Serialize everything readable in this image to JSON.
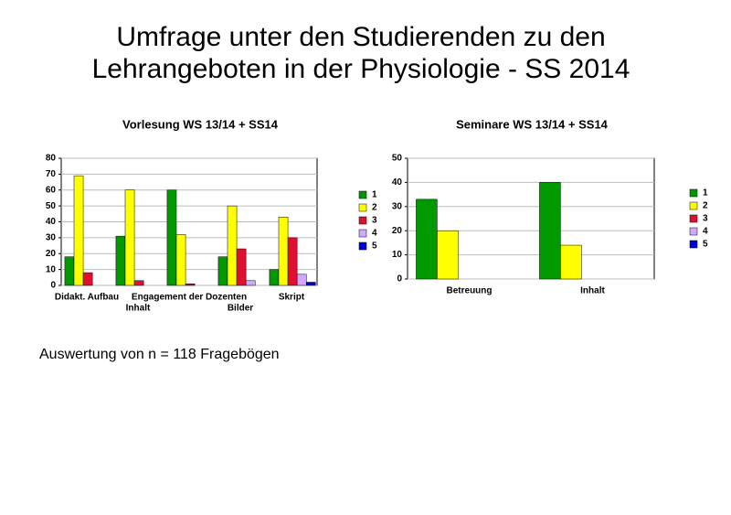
{
  "title": [
    "Umfrage unter den Studierenden zu den",
    "Lehrangeboten in der Physiologie - SS 2014"
  ],
  "footnote": "Auswertung von n = 118 Fragebögen",
  "chart_data": [
    {
      "type": "bar",
      "title": "Vorlesung WS 13/14 + SS14",
      "categories": [
        "Didakt. Aufbau",
        "Inhalt",
        "Engagement der Dozenten",
        "Bilder",
        "Skript"
      ],
      "series": [
        {
          "name": "1",
          "color": "#009900",
          "values": [
            18,
            31,
            60,
            18,
            10
          ]
        },
        {
          "name": "2",
          "color": "#ffff00",
          "values": [
            69,
            60,
            32,
            50,
            43
          ]
        },
        {
          "name": "3",
          "color": "#dd1133",
          "values": [
            8,
            3,
            1,
            23,
            30
          ]
        },
        {
          "name": "4",
          "color": "#ccaaff",
          "values": [
            0,
            0,
            0,
            3,
            7
          ]
        },
        {
          "name": "5",
          "color": "#0000dd",
          "values": [
            0,
            0,
            0,
            0,
            2
          ]
        }
      ],
      "ylim": [
        0,
        80
      ],
      "yticks": [
        0,
        10,
        20,
        30,
        40,
        50,
        60,
        70,
        80
      ],
      "grid": true
    },
    {
      "type": "bar",
      "title": "Seminare WS 13/14 + SS14",
      "categories": [
        "Betreuung",
        "Inhalt"
      ],
      "series": [
        {
          "name": "1",
          "color": "#009900",
          "values": [
            33,
            40
          ]
        },
        {
          "name": "2",
          "color": "#ffff00",
          "values": [
            20,
            14
          ]
        },
        {
          "name": "3",
          "color": "#dd1133",
          "values": [
            0,
            0
          ]
        },
        {
          "name": "4",
          "color": "#ccaaff",
          "values": [
            0,
            0
          ]
        },
        {
          "name": "5",
          "color": "#0000dd",
          "values": [
            0,
            0
          ]
        }
      ],
      "ylim": [
        0,
        50
      ],
      "yticks": [
        0,
        10,
        20,
        30,
        40,
        50
      ],
      "grid": true
    }
  ]
}
